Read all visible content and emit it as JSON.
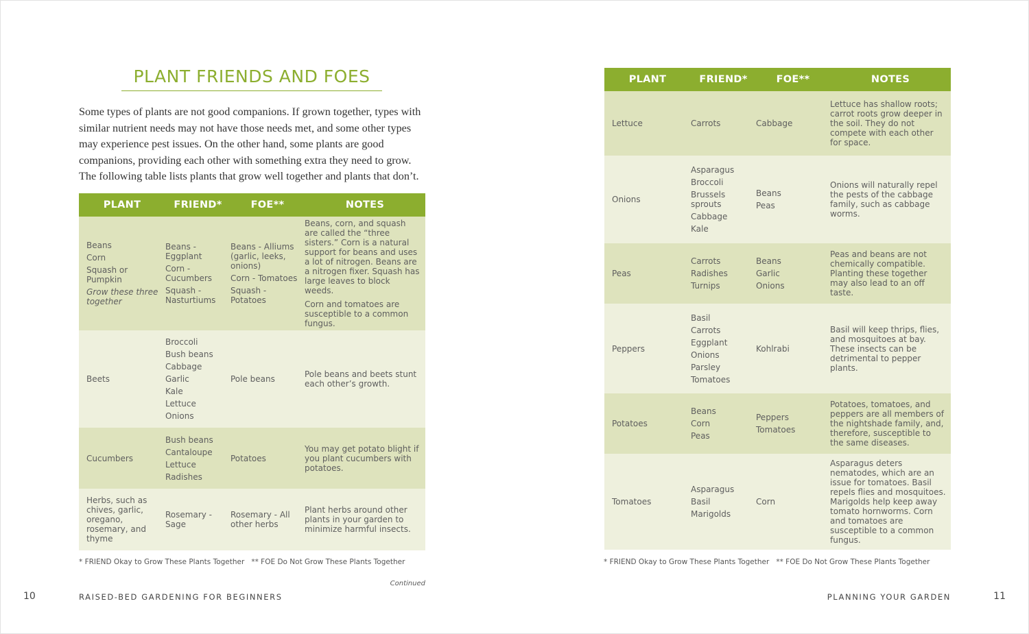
{
  "left_page": {
    "title": "PLANT FRIENDS AND FOES",
    "paragraph": "Some types of plants are not good companions. If grown together, types with similar nutrient needs may not have those needs met, and some other types may experience pest issues. On the other hand, some plants are good companions, providing each other with something extra they need to grow. The following table lists plants that grow well together and plants that don’t.",
    "table": {
      "headers": [
        "PLANT",
        "FRIEND*",
        "FOE**",
        "NOTES"
      ],
      "rows": [
        {
          "plant": [
            "Beans",
            "Corn",
            "Squash or Pumpkin",
            "Grow these three together"
          ],
          "friend": [
            "Beans - Eggplant",
            "Corn - Cucumbers",
            "Squash - Nasturtiums"
          ],
          "foe": [
            "Beans - Alliums (garlic, leeks, onions)",
            "Corn - Tomatoes",
            "Squash - Potatoes"
          ],
          "notes": [
            "Beans, corn, and squash are called the “three sisters.” Corn is a natural support for beans and uses a lot of nitrogen. Beans are a nitrogen fixer. Squash has large leaves to block weeds.",
            "Corn and tomatoes are susceptible to a common fungus."
          ]
        },
        {
          "plant": [
            "Beets"
          ],
          "friend": [
            "Broccoli",
            "Bush beans",
            "Cabbage",
            "Garlic",
            "Kale",
            "Lettuce",
            "Onions"
          ],
          "foe": [
            "Pole beans"
          ],
          "notes": [
            "Pole beans and beets stunt each other’s growth."
          ]
        },
        {
          "plant": [
            "Cucumbers"
          ],
          "friend": [
            "Bush beans",
            "Cantaloupe",
            "Lettuce",
            "Radishes"
          ],
          "foe": [
            "Potatoes"
          ],
          "notes": [
            "You may get potato blight if you plant cucumbers with potatoes."
          ]
        },
        {
          "plant": [
            "Herbs, such as chives, garlic, oregano, rosemary, and thyme"
          ],
          "friend": [
            "Rosemary - Sage"
          ],
          "foe": [
            "Rosemary - All other herbs"
          ],
          "notes": [
            "Plant herbs around other plants in your garden to minimize harmful insects."
          ]
        }
      ]
    },
    "footnotes": [
      "* FRIEND Okay to Grow These Plants Together",
      "** FOE Do Not Grow These Plants Together"
    ],
    "continued": "Continued",
    "page_number": "10",
    "running_head": "RAISED-BED GARDENING FOR BEGINNERS"
  },
  "right_page": {
    "table": {
      "headers": [
        "PLANT",
        "FRIEND*",
        "FOE**",
        "NOTES"
      ],
      "rows": [
        {
          "plant": [
            "Lettuce"
          ],
          "friend": [
            "Carrots"
          ],
          "foe": [
            "Cabbage"
          ],
          "notes": [
            "Lettuce has shallow roots; carrot roots grow deeper in the soil. They do not compete with each other for space."
          ]
        },
        {
          "plant": [
            "Onions"
          ],
          "friend": [
            "Asparagus",
            "Broccoli",
            "Brussels sprouts",
            "Cabbage",
            "Kale"
          ],
          "foe": [
            "Beans",
            "Peas"
          ],
          "notes": [
            "Onions will naturally repel the pests of the cabbage family, such as cabbage worms."
          ]
        },
        {
          "plant": [
            "Peas"
          ],
          "friend": [
            "Carrots",
            "Radishes",
            "Turnips"
          ],
          "foe": [
            "Beans",
            "Garlic",
            "Onions"
          ],
          "notes": [
            "Peas and beans are not chemically compatible. Planting these together may also lead to an off taste."
          ]
        },
        {
          "plant": [
            "Peppers"
          ],
          "friend": [
            "Basil",
            "Carrots",
            "Eggplant",
            "Onions",
            "Parsley",
            "Tomatoes"
          ],
          "foe": [
            "Kohlrabi"
          ],
          "notes": [
            "Basil will keep thrips, flies, and mosquitoes at bay. These insects can be detrimental to pepper plants."
          ]
        },
        {
          "plant": [
            "Potatoes"
          ],
          "friend": [
            "Beans",
            "Corn",
            "Peas"
          ],
          "foe": [
            "Peppers",
            "Tomatoes"
          ],
          "notes": [
            "Potatoes, tomatoes, and peppers are all members of the nightshade family, and, therefore, susceptible to the same diseases."
          ]
        },
        {
          "plant": [
            "Tomatoes"
          ],
          "friend": [
            "Asparagus",
            "Basil",
            "Marigolds"
          ],
          "foe": [
            "Corn"
          ],
          "notes": [
            "Asparagus deters nematodes, which are an issue for tomatoes. Basil repels flies and mosquitoes. Marigolds help keep away tomato hornworms. Corn and tomatoes are susceptible to a common fungus."
          ]
        }
      ]
    },
    "footnotes": [
      "* FRIEND Okay to Grow These Plants Together",
      "** FOE Do Not Grow These Plants Together"
    ],
    "running_head": "PLANNING YOUR GARDEN",
    "page_number": "11"
  }
}
